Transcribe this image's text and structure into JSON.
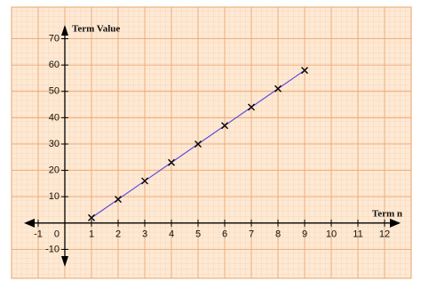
{
  "chart_data": {
    "type": "line",
    "x_label": "Term n",
    "y_label": "Term Value",
    "x": [
      1,
      2,
      3,
      4,
      5,
      6,
      7,
      8,
      9
    ],
    "series": [
      {
        "color": "#5a4fe0",
        "values": [
          2,
          9,
          16,
          23,
          30,
          37,
          44,
          51,
          58
        ]
      }
    ],
    "xlim": [
      -2,
      13
    ],
    "ylim": [
      -21,
      82
    ],
    "xticks": [
      -1,
      0,
      1,
      2,
      3,
      4,
      5,
      6,
      7,
      8,
      9,
      10,
      11,
      12
    ],
    "yticks": [
      -10,
      10,
      20,
      30,
      40,
      50,
      60,
      70
    ],
    "grid": true
  }
}
